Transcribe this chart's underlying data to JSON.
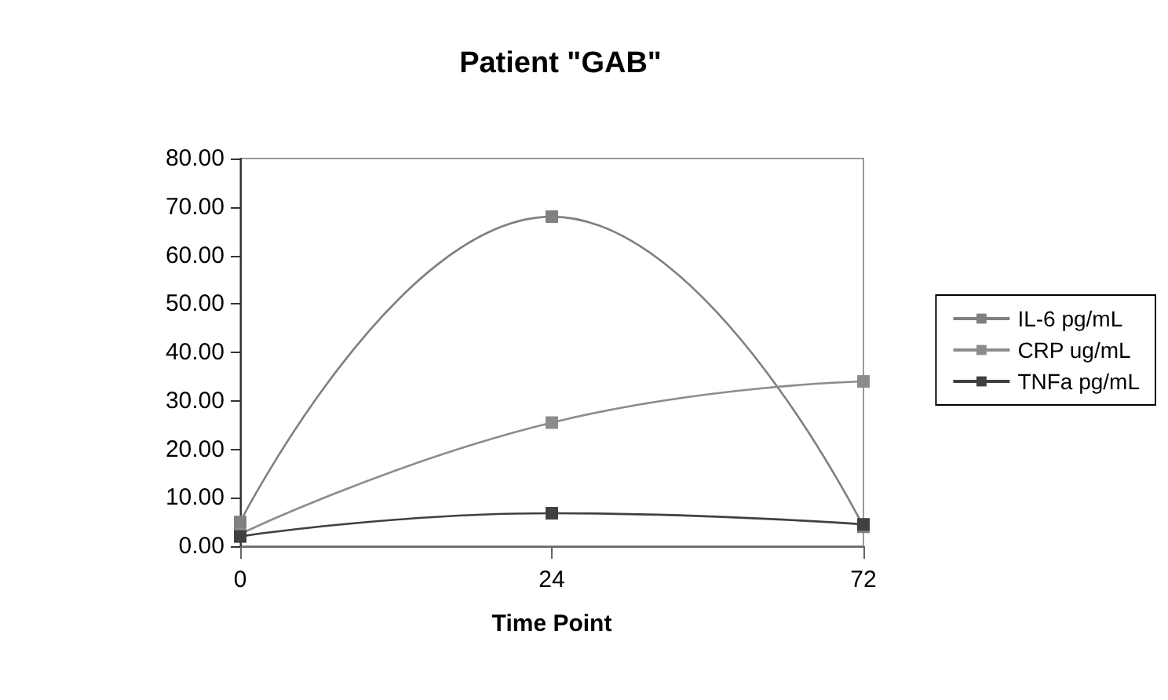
{
  "chart_data": {
    "type": "line",
    "title": "Patient \"GAB\"",
    "xlabel": "Time Point",
    "categories": [
      "0",
      "24",
      "72"
    ],
    "series": [
      {
        "name": "IL-6 pg/mL",
        "color": "#808080",
        "values": [
          5,
          68,
          4
        ]
      },
      {
        "name": "CRP ug/mL",
        "color": "#8c8c8c",
        "values": [
          2.5,
          25.5,
          34
        ]
      },
      {
        "name": "TNFa pg/mL",
        "color": "#404040",
        "values": [
          2,
          6.8,
          4.5
        ]
      }
    ],
    "ylim": [
      0,
      80
    ],
    "yticks": [
      {
        "value": 0,
        "label": "0.00"
      },
      {
        "value": 10,
        "label": "10.00"
      },
      {
        "value": 20,
        "label": "20.00"
      },
      {
        "value": 30,
        "label": "30.00"
      },
      {
        "value": 40,
        "label": "40.00"
      },
      {
        "value": 50,
        "label": "50.00"
      },
      {
        "value": 60,
        "label": "60.00"
      },
      {
        "value": 70,
        "label": "70.00"
      },
      {
        "value": 80,
        "label": "80.00"
      }
    ],
    "grid": false,
    "legend": "right",
    "marker": "square",
    "line_style": "solid"
  }
}
